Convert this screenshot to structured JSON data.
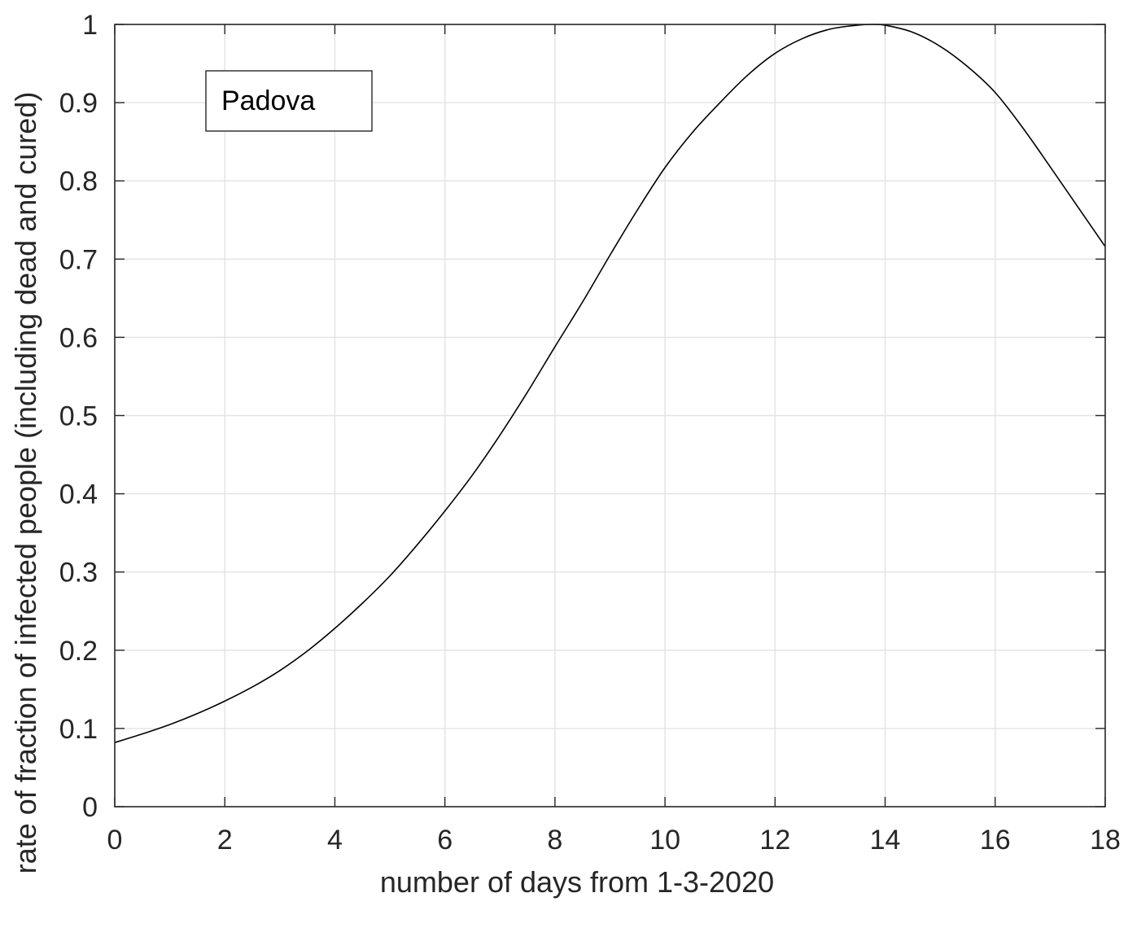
{
  "chart_data": {
    "type": "line",
    "xlabel": "number of days from 1-3-2020",
    "ylabel": "rate of fraction of infected people (including dead and cured)",
    "xlim": [
      0,
      18
    ],
    "ylim": [
      0,
      1
    ],
    "x_ticks": [
      0,
      2,
      4,
      6,
      8,
      10,
      12,
      14,
      16,
      18
    ],
    "y_ticks": [
      0,
      0.1,
      0.2,
      0.3,
      0.4,
      0.5,
      0.6,
      0.7,
      0.8,
      0.9,
      1
    ],
    "x_tick_labels": [
      "0",
      "2",
      "4",
      "6",
      "8",
      "10",
      "12",
      "14",
      "16",
      "18"
    ],
    "y_tick_labels": [
      "0",
      "0.1",
      "0.2",
      "0.3",
      "0.4",
      "0.5",
      "0.6",
      "0.7",
      "0.8",
      "0.9",
      "1"
    ],
    "grid": true,
    "legend": {
      "position": "top-left",
      "entries": [
        "Padova"
      ]
    },
    "series": [
      {
        "name": "Padova",
        "color": "#000000",
        "x": [
          0,
          0.5,
          1,
          1.5,
          2,
          2.5,
          3,
          3.5,
          4,
          4.5,
          5,
          5.5,
          6,
          6.5,
          7,
          7.5,
          8,
          8.5,
          9,
          9.5,
          10,
          10.5,
          11,
          11.5,
          12,
          12.5,
          13,
          13.5,
          13.75,
          14,
          14.5,
          15,
          15.5,
          16,
          16.5,
          17,
          17.5,
          18
        ],
        "y": [
          0.082,
          0.093,
          0.105,
          0.119,
          0.135,
          0.153,
          0.174,
          0.199,
          0.228,
          0.26,
          0.295,
          0.335,
          0.378,
          0.424,
          0.475,
          0.53,
          0.588,
          0.645,
          0.705,
          0.763,
          0.817,
          0.862,
          0.9,
          0.935,
          0.963,
          0.982,
          0.994,
          0.999,
          1.0,
          0.999,
          0.99,
          0.972,
          0.946,
          0.913,
          0.868,
          0.818,
          0.767,
          0.716
        ]
      }
    ]
  }
}
